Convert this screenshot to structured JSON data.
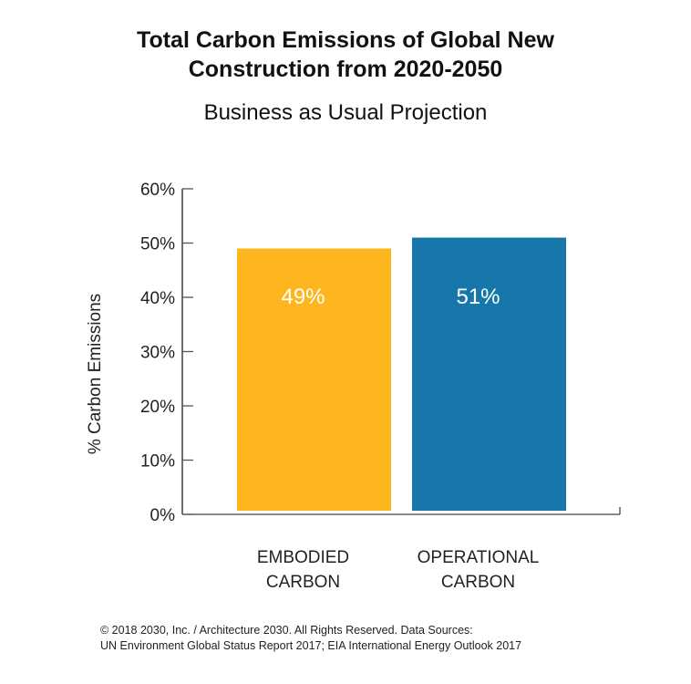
{
  "chart_data": {
    "type": "bar",
    "title": "Total Carbon Emissions of Global New Construction from 2020-2050",
    "title_lines": [
      "Total Carbon Emissions of Global New",
      "Construction from 2020-2050"
    ],
    "subtitle": "Business as Usual Projection",
    "ylabel": "% Carbon Emissions",
    "xlabel": "",
    "ylim": [
      0,
      60
    ],
    "yticks": [
      "0%",
      "10%",
      "20%",
      "30%",
      "40%",
      "50%",
      "60%"
    ],
    "grid": false,
    "categories": [
      [
        "EMBODIED",
        "CARBON"
      ],
      [
        "OPERATIONAL",
        "CARBON"
      ]
    ],
    "values": [
      49,
      51
    ],
    "data_labels": [
      "49%",
      "51%"
    ],
    "colors": [
      "#FDB61E",
      "#1877AA"
    ]
  },
  "footer": {
    "line1": "© 2018 2030, Inc. / Architecture 2030. All Rights Reserved. Data Sources:",
    "line2": "UN Environment Global Status Report 2017; EIA International Energy Outlook 2017"
  }
}
